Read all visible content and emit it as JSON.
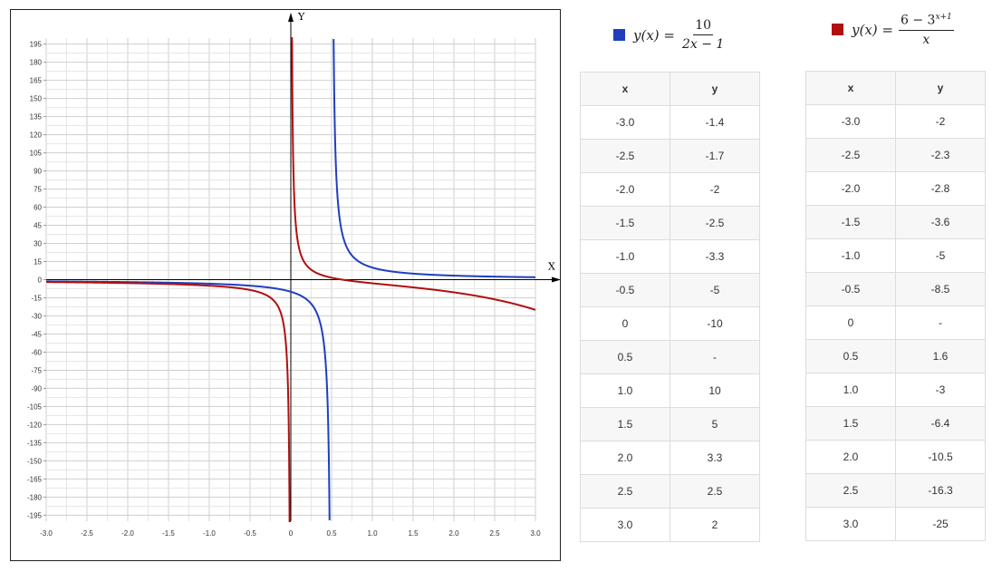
{
  "colors": {
    "series1": "#1f3fbf",
    "series2": "#b20f0f",
    "grid": "#d4d4d4",
    "axis": "#000000"
  },
  "legend": {
    "series1": {
      "lhs": "y(x) =",
      "num": "10",
      "den": "2x − 1"
    },
    "series2": {
      "lhs": "y(x) =",
      "num_base": "6 − 3",
      "num_exp": "x+1",
      "den": "x"
    }
  },
  "table1": {
    "headers": [
      "x",
      "y"
    ],
    "rows": [
      [
        "-3.0",
        "-1.4"
      ],
      [
        "-2.5",
        "-1.7"
      ],
      [
        "-2.0",
        "-2"
      ],
      [
        "-1.5",
        "-2.5"
      ],
      [
        "-1.0",
        "-3.3"
      ],
      [
        "-0.5",
        "-5"
      ],
      [
        "0",
        "-10"
      ],
      [
        "0.5",
        "-"
      ],
      [
        "1.0",
        "10"
      ],
      [
        "1.5",
        "5"
      ],
      [
        "2.0",
        "3.3"
      ],
      [
        "2.5",
        "2.5"
      ],
      [
        "3.0",
        "2"
      ]
    ]
  },
  "table2": {
    "headers": [
      "x",
      "y"
    ],
    "rows": [
      [
        "-3.0",
        "-2"
      ],
      [
        "-2.5",
        "-2.3"
      ],
      [
        "-2.0",
        "-2.8"
      ],
      [
        "-1.5",
        "-3.6"
      ],
      [
        "-1.0",
        "-5"
      ],
      [
        "-0.5",
        "-8.5"
      ],
      [
        "0",
        "-"
      ],
      [
        "0.5",
        "1.6"
      ],
      [
        "1.0",
        "-3"
      ],
      [
        "1.5",
        "-6.4"
      ],
      [
        "2.0",
        "-10.5"
      ],
      [
        "2.5",
        "-16.3"
      ],
      [
        "3.0",
        "-25"
      ]
    ]
  },
  "chart_data": {
    "type": "line",
    "xlabel": "X",
    "ylabel": "Y",
    "xlim": [
      -3.0,
      3.0
    ],
    "ylim": [
      -200,
      200
    ],
    "grid": true,
    "x_ticks": [
      "-3.0",
      "-2.5",
      "-2.0",
      "-1.5",
      "-1.0",
      "-0.5",
      "0",
      "0.5",
      "1.0",
      "1.5",
      "2.0",
      "2.5",
      "3.0"
    ],
    "y_ticks": [
      "195",
      "180",
      "165",
      "150",
      "135",
      "120",
      "105",
      "90",
      "75",
      "60",
      "45",
      "30",
      "15",
      "0",
      "-15",
      "-30",
      "-45",
      "-60",
      "-75",
      "-90",
      "-105",
      "-120",
      "-135",
      "-150",
      "-165",
      "-180",
      "-195"
    ],
    "series": [
      {
        "formula": "10/(2x-1)",
        "color": "#1f3fbf",
        "x": [
          -3.0,
          -2.5,
          -2.0,
          -1.5,
          -1.0,
          -0.5,
          0,
          1.0,
          1.5,
          2.0,
          2.5,
          3.0
        ],
        "values": [
          -1.4,
          -1.7,
          -2,
          -2.5,
          -3.3,
          -5,
          -10,
          10,
          5,
          3.3,
          2.5,
          2
        ]
      },
      {
        "formula": "(6-3^(x+1))/x",
        "color": "#b20f0f",
        "x": [
          -3.0,
          -2.5,
          -2.0,
          -1.5,
          -1.0,
          -0.5,
          0.5,
          1.0,
          1.5,
          2.0,
          2.5,
          3.0
        ],
        "values": [
          -2,
          -2.3,
          -2.8,
          -3.6,
          -5,
          -8.5,
          1.6,
          -3,
          -6.4,
          -10.5,
          -16.3,
          -25
        ]
      }
    ]
  }
}
